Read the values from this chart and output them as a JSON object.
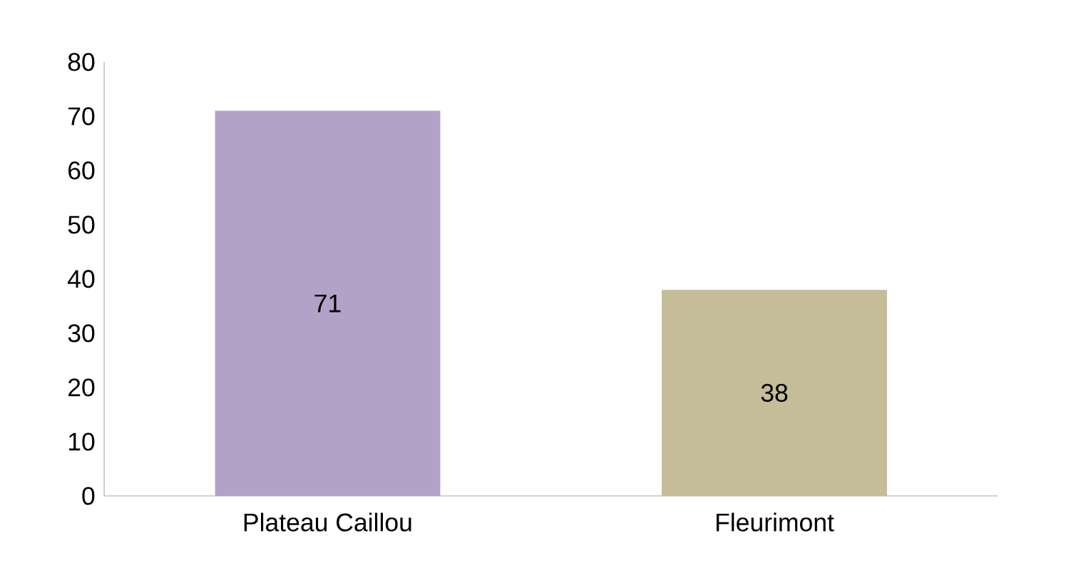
{
  "chart_data": {
    "type": "bar",
    "categories": [
      "Plateau Caillou",
      "Fleurimont"
    ],
    "values": [
      71,
      38
    ],
    "colors": [
      "#b3a2c7",
      "#c4bd97"
    ],
    "ylim": [
      0,
      80
    ],
    "yticks": [
      0,
      10,
      20,
      30,
      40,
      50,
      60,
      70,
      80
    ],
    "data_labels": true
  }
}
